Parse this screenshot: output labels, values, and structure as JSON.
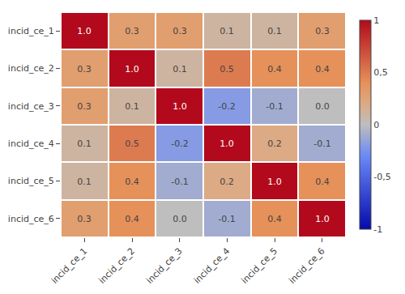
{
  "chart_data": {
    "type": "heatmap",
    "categories": [
      "incid_ce_1",
      "incid_ce_2",
      "incid_ce_3",
      "incid_ce_4",
      "incid_ce_5",
      "incid_ce_6"
    ],
    "values": [
      [
        1.0,
        0.3,
        0.3,
        0.1,
        0.1,
        0.3
      ],
      [
        0.3,
        1.0,
        0.1,
        0.5,
        0.4,
        0.4
      ],
      [
        0.3,
        0.1,
        1.0,
        -0.2,
        -0.1,
        0.0
      ],
      [
        0.1,
        0.5,
        -0.2,
        1.0,
        0.2,
        -0.1
      ],
      [
        0.1,
        0.4,
        -0.1,
        0.2,
        1.0,
        0.4
      ],
      [
        0.3,
        0.4,
        0.0,
        -0.1,
        0.4,
        1.0
      ]
    ],
    "value_labels": [
      [
        "1.0",
        "0.3",
        "0.3",
        "0.1",
        "0.1",
        "0.3"
      ],
      [
        "0.3",
        "1.0",
        "0.1",
        "0.5",
        "0.4",
        "0.4"
      ],
      [
        "0.3",
        "0.1",
        "1.0",
        "-0.2",
        "-0.1",
        "0.0"
      ],
      [
        "0.1",
        "0.5",
        "-0.2",
        "1.0",
        "0.2",
        "-0.1"
      ],
      [
        "0.1",
        "0.4",
        "-0.1",
        "0.2",
        "1.0",
        "0.4"
      ],
      [
        "0.3",
        "0.4",
        "0.0",
        "-0.1",
        "0.4",
        "1.0"
      ]
    ],
    "data_labels": true,
    "zlim": [
      -1,
      1
    ],
    "zticks": [
      1,
      {
        "value": 0.5,
        "label": "0,5"
      },
      0,
      {
        "value": -0.5,
        "label": "-0,5"
      },
      -1
    ]
  }
}
